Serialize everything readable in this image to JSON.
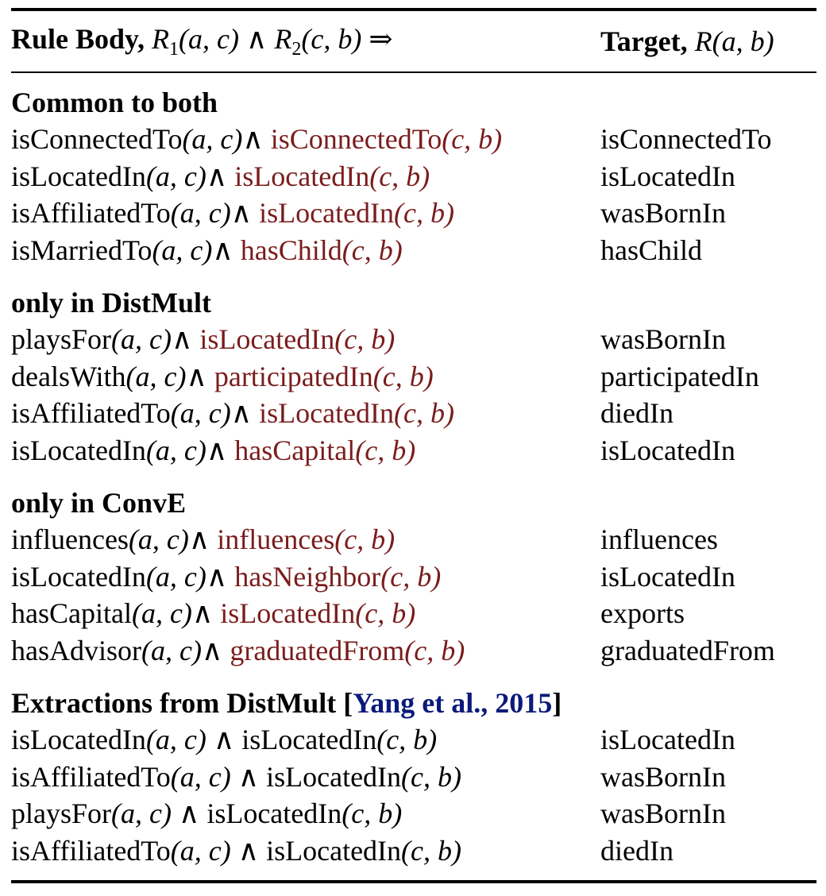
{
  "header": {
    "body_label": "Rule Body,",
    "body_math_r1": "R",
    "body_math_sub1": "1",
    "body_math_args1": "(a, c)",
    "body_math_and": " ∧ ",
    "body_math_r2": "R",
    "body_math_sub2": "2",
    "body_math_args2": "(c, b)",
    "body_math_implies": " ⇒",
    "target_label": "Target,",
    "target_math_r": "R",
    "target_math_args": "(a, b)"
  },
  "symbols": {
    "ac": "(a, c)",
    "cb": "(c, b)",
    "and": "∧"
  },
  "sections": [
    {
      "title": "Common to both",
      "rows": [
        {
          "p1": "isConnectedTo",
          "p2": "isConnectedTo",
          "target": "isConnectedTo"
        },
        {
          "p1": "isLocatedIn",
          "p2": "isLocatedIn",
          "target": "isLocatedIn"
        },
        {
          "p1": "isAffiliatedTo",
          "p2": "isLocatedIn",
          "target": "wasBornIn"
        },
        {
          "p1": "isMarriedTo",
          "p2": "hasChild",
          "target": "hasChild"
        }
      ]
    },
    {
      "title": "only in DistMult",
      "rows": [
        {
          "p1": "playsFor",
          "p2": "isLocatedIn",
          "target": "wasBornIn"
        },
        {
          "p1": "dealsWith",
          "p2": "participatedIn",
          "target": "participatedIn"
        },
        {
          "p1": "isAffiliatedTo",
          "p2": "isLocatedIn",
          "target": "diedIn"
        },
        {
          "p1": "isLocatedIn",
          "p2": "hasCapital",
          "target": "isLocatedIn"
        }
      ]
    },
    {
      "title": "only in ConvE",
      "rows": [
        {
          "p1": "influences",
          "p2": "influences",
          "target": "influences"
        },
        {
          "p1": "isLocatedIn",
          "p2": "hasNeighbor",
          "target": "isLocatedIn"
        },
        {
          "p1": "hasCapital",
          "p2": "isLocatedIn",
          "target": "exports"
        },
        {
          "p1": "hasAdvisor",
          "p2": "graduatedFrom",
          "target": "graduatedFrom"
        }
      ]
    },
    {
      "title": "Extractions from DistMult",
      "cite_open": "[",
      "cite_text": "Yang et al., 2015",
      "cite_close": "]",
      "rows": [
        {
          "p1": "isLocatedIn",
          "p2": "isLocatedIn",
          "target": "isLocatedIn"
        },
        {
          "p1": "isAffiliatedTo",
          "p2": "isLocatedIn",
          "target": "wasBornIn"
        },
        {
          "p1": "playsFor",
          "p2": "isLocatedIn",
          "target": "wasBornIn"
        },
        {
          "p1": "isAffiliatedTo",
          "p2": "isLocatedIn",
          "target": "diedIn"
        }
      ]
    }
  ],
  "colors": {
    "highlight": "#7a1c1c",
    "citation": "#0a1a7a"
  }
}
